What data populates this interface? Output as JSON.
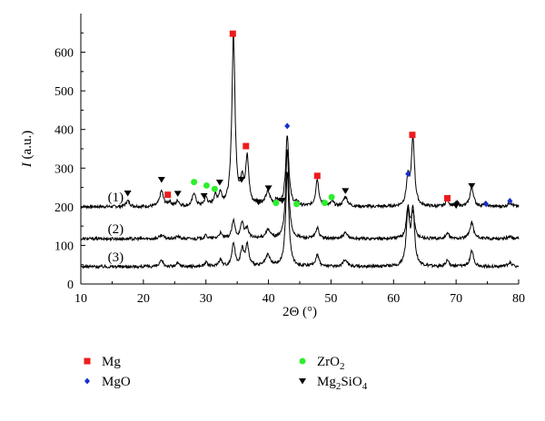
{
  "chart_data": {
    "type": "line",
    "title": "",
    "xlabel": "2Θ (°)",
    "ylabel": "I (a.u.)",
    "xlim": [
      10,
      80
    ],
    "ylim": [
      0,
      700
    ],
    "xticks": [
      "10",
      "20",
      "30",
      "40",
      "50",
      "60",
      "70",
      "80"
    ],
    "yticks": [
      "0",
      "100",
      "200",
      "300",
      "400",
      "500",
      "600"
    ],
    "grid": false,
    "legend_position": "below",
    "series": [
      {
        "name": "(1)",
        "baseline": 200,
        "peaks": [
          {
            "x": 17.5,
            "h": 15,
            "w": 0.35
          },
          {
            "x": 22.9,
            "h": 40,
            "w": 0.35
          },
          {
            "x": 24.2,
            "h": 12,
            "w": 0.3
          },
          {
            "x": 25.5,
            "h": 14,
            "w": 0.3
          },
          {
            "x": 28.1,
            "h": 35,
            "w": 0.3
          },
          {
            "x": 30.0,
            "h": 22,
            "w": 0.3
          },
          {
            "x": 31.5,
            "h": 25,
            "w": 0.3
          },
          {
            "x": 32.3,
            "h": 30,
            "w": 0.3
          },
          {
            "x": 34.4,
            "h": 445,
            "w": 0.3
          },
          {
            "x": 35.8,
            "h": 60,
            "w": 0.3
          },
          {
            "x": 36.6,
            "h": 120,
            "w": 0.3
          },
          {
            "x": 38.3,
            "h": 8,
            "w": 0.3
          },
          {
            "x": 39.9,
            "h": 35,
            "w": 0.45
          },
          {
            "x": 41.3,
            "h": 12,
            "w": 0.3
          },
          {
            "x": 43.0,
            "h": 185,
            "w": 0.3
          },
          {
            "x": 44.6,
            "h": 8,
            "w": 0.3
          },
          {
            "x": 47.8,
            "h": 70,
            "w": 0.3
          },
          {
            "x": 49.0,
            "h": 8,
            "w": 0.3
          },
          {
            "x": 50.2,
            "h": 12,
            "w": 0.3
          },
          {
            "x": 52.3,
            "h": 25,
            "w": 0.4
          },
          {
            "x": 62.3,
            "h": 70,
            "w": 0.3
          },
          {
            "x": 63.1,
            "h": 175,
            "w": 0.3
          },
          {
            "x": 68.6,
            "h": 18,
            "w": 0.3
          },
          {
            "x": 70.1,
            "h": 10,
            "w": 0.3
          },
          {
            "x": 72.5,
            "h": 50,
            "w": 0.35
          },
          {
            "x": 74.7,
            "h": 8,
            "w": 0.3
          },
          {
            "x": 78.6,
            "h": 10,
            "w": 0.4
          }
        ]
      },
      {
        "name": "(2)",
        "baseline": 117,
        "peaks": [
          {
            "x": 22.9,
            "h": 10,
            "w": 0.35
          },
          {
            "x": 25.5,
            "h": 6,
            "w": 0.3
          },
          {
            "x": 30.0,
            "h": 8,
            "w": 0.3
          },
          {
            "x": 32.3,
            "h": 14,
            "w": 0.3
          },
          {
            "x": 34.4,
            "h": 45,
            "w": 0.3
          },
          {
            "x": 35.8,
            "h": 40,
            "w": 0.3
          },
          {
            "x": 36.6,
            "h": 25,
            "w": 0.3
          },
          {
            "x": 39.9,
            "h": 22,
            "w": 0.45
          },
          {
            "x": 43.0,
            "h": 230,
            "w": 0.3
          },
          {
            "x": 47.8,
            "h": 28,
            "w": 0.3
          },
          {
            "x": 52.3,
            "h": 14,
            "w": 0.4
          },
          {
            "x": 62.3,
            "h": 80,
            "w": 0.3
          },
          {
            "x": 63.1,
            "h": 65,
            "w": 0.3
          },
          {
            "x": 68.6,
            "h": 14,
            "w": 0.3
          },
          {
            "x": 72.5,
            "h": 43,
            "w": 0.35
          },
          {
            "x": 78.6,
            "h": 6,
            "w": 0.4
          }
        ]
      },
      {
        "name": "(3)",
        "baseline": 45,
        "peaks": [
          {
            "x": 22.9,
            "h": 14,
            "w": 0.35
          },
          {
            "x": 25.5,
            "h": 8,
            "w": 0.3
          },
          {
            "x": 30.0,
            "h": 10,
            "w": 0.3
          },
          {
            "x": 32.3,
            "h": 18,
            "w": 0.3
          },
          {
            "x": 34.4,
            "h": 60,
            "w": 0.3
          },
          {
            "x": 35.8,
            "h": 42,
            "w": 0.3
          },
          {
            "x": 36.6,
            "h": 55,
            "w": 0.3
          },
          {
            "x": 39.9,
            "h": 28,
            "w": 0.45
          },
          {
            "x": 43.0,
            "h": 245,
            "w": 0.3
          },
          {
            "x": 47.8,
            "h": 32,
            "w": 0.3
          },
          {
            "x": 52.3,
            "h": 18,
            "w": 0.4
          },
          {
            "x": 62.3,
            "h": 140,
            "w": 0.3
          },
          {
            "x": 63.1,
            "h": 145,
            "w": 0.3
          },
          {
            "x": 68.6,
            "h": 16,
            "w": 0.3
          },
          {
            "x": 72.5,
            "h": 40,
            "w": 0.35
          },
          {
            "x": 78.6,
            "h": 10,
            "w": 0.4
          }
        ]
      }
    ],
    "markers": [
      {
        "phase": "Mg",
        "x": 23.9,
        "y": 231
      },
      {
        "phase": "Mg",
        "x": 34.3,
        "y": 648
      },
      {
        "phase": "Mg",
        "x": 36.4,
        "y": 357
      },
      {
        "phase": "Mg",
        "x": 47.8,
        "y": 280
      },
      {
        "phase": "Mg",
        "x": 63.0,
        "y": 386
      },
      {
        "phase": "Mg",
        "x": 68.6,
        "y": 222
      },
      {
        "phase": "MgO",
        "x": 43.0,
        "y": 409
      },
      {
        "phase": "MgO",
        "x": 62.3,
        "y": 285
      },
      {
        "phase": "MgO",
        "x": 74.8,
        "y": 207
      },
      {
        "phase": "MgO",
        "x": 78.6,
        "y": 215
      },
      {
        "phase": "ZrO2",
        "x": 28.1,
        "y": 264
      },
      {
        "phase": "ZrO2",
        "x": 30.1,
        "y": 255
      },
      {
        "phase": "ZrO2",
        "x": 31.4,
        "y": 246
      },
      {
        "phase": "ZrO2",
        "x": 41.2,
        "y": 210
      },
      {
        "phase": "ZrO2",
        "x": 44.5,
        "y": 207
      },
      {
        "phase": "ZrO2",
        "x": 49.0,
        "y": 210
      },
      {
        "phase": "ZrO2",
        "x": 50.1,
        "y": 225
      },
      {
        "phase": "Mg2SiO4",
        "x": 17.5,
        "y": 235
      },
      {
        "phase": "Mg2SiO4",
        "x": 22.9,
        "y": 270
      },
      {
        "phase": "Mg2SiO4",
        "x": 25.5,
        "y": 234
      },
      {
        "phase": "Mg2SiO4",
        "x": 29.7,
        "y": 228
      },
      {
        "phase": "Mg2SiO4",
        "x": 32.2,
        "y": 263
      },
      {
        "phase": "Mg2SiO4",
        "x": 35.7,
        "y": 270
      },
      {
        "phase": "Mg2SiO4",
        "x": 38.4,
        "y": 212
      },
      {
        "phase": "Mg2SiO4",
        "x": 40.0,
        "y": 248
      },
      {
        "phase": "Mg2SiO4",
        "x": 42.2,
        "y": 216
      },
      {
        "phase": "Mg2SiO4",
        "x": 52.3,
        "y": 241
      },
      {
        "phase": "Mg2SiO4",
        "x": 70.0,
        "y": 203
      },
      {
        "phase": "Mg2SiO4",
        "x": 72.5,
        "y": 254
      }
    ],
    "legend": [
      {
        "phase": "Mg",
        "label": "Mg",
        "marker": "square",
        "color": "#ee1c1c"
      },
      {
        "phase": "ZrO2",
        "label": "ZrO",
        "sub": "2",
        "marker": "circle",
        "color": "#2cf02c"
      },
      {
        "phase": "MgO",
        "label": "MgO",
        "marker": "diamond",
        "color": "#1a2fcf"
      },
      {
        "phase": "Mg2SiO4",
        "label": "Mg",
        "sub": "2",
        "label2": "SiO",
        "sub2": "4",
        "marker": "triangle-down",
        "color": "#000000"
      }
    ]
  }
}
